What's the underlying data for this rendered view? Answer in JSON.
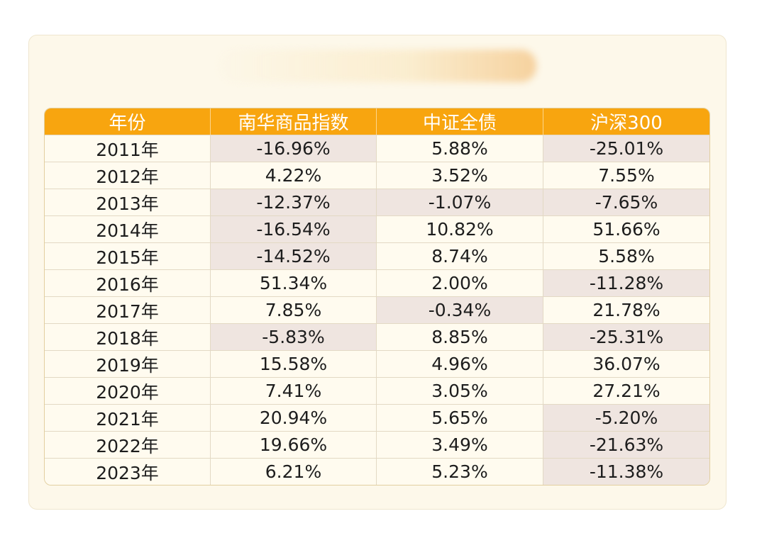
{
  "chart_data": {
    "type": "table",
    "columns": [
      "年份",
      "南华商品指数",
      "中证全债",
      "沪深300"
    ],
    "rows": [
      [
        "2011年",
        "-16.96%",
        "5.88%",
        "-25.01%"
      ],
      [
        "2012年",
        "4.22%",
        "3.52%",
        "7.55%"
      ],
      [
        "2013年",
        "-12.37%",
        "-1.07%",
        "-7.65%"
      ],
      [
        "2014年",
        "-16.54%",
        "10.82%",
        "51.66%"
      ],
      [
        "2015年",
        "-14.52%",
        "8.74%",
        "5.58%"
      ],
      [
        "2016年",
        "51.34%",
        "2.00%",
        "-11.28%"
      ],
      [
        "2017年",
        "7.85%",
        "-0.34%",
        "21.78%"
      ],
      [
        "2018年",
        "-5.83%",
        "8.85%",
        "-25.31%"
      ],
      [
        "2019年",
        "15.58%",
        "4.96%",
        "36.07%"
      ],
      [
        "2020年",
        "7.41%",
        "3.05%",
        "27.21%"
      ],
      [
        "2021年",
        "20.94%",
        "5.65%",
        "-5.20%"
      ],
      [
        "2022年",
        "19.66%",
        "3.49%",
        "-21.63%"
      ],
      [
        "2023年",
        "6.21%",
        "5.23%",
        "-11.38%"
      ]
    ],
    "colors": {
      "header_bg": "#f8a50f",
      "header_text": "#ffffff",
      "negative_cell_bg": "#efe5e0",
      "cell_bg": "#fffbef"
    }
  }
}
